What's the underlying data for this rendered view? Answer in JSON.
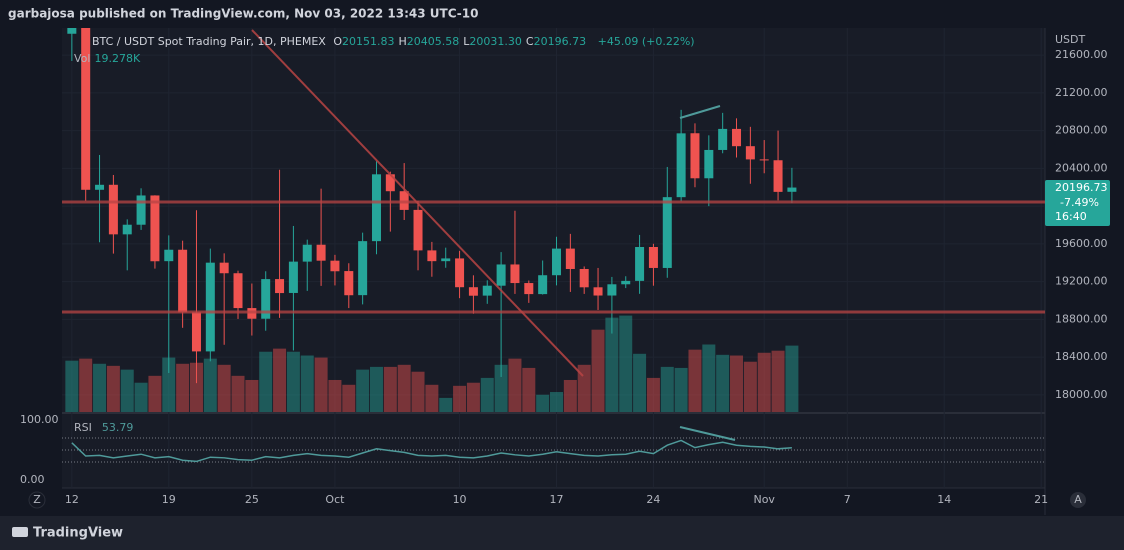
{
  "chart_data": {
    "type": "candlestick",
    "attribution": "garbajosa published on TradingView.com, Nov 03, 2022 13:43 UTC-10",
    "symbol": "BTC / USDT Spot Trading Pair, 1D, PHEMEX",
    "ohlc_legend": [
      {
        "key": "O",
        "value": "20151.83"
      },
      {
        "key": "H",
        "value": "20405.58"
      },
      {
        "key": "L",
        "value": "20031.30"
      },
      {
        "key": "C",
        "value": "20196.73"
      }
    ],
    "change": "+45.09 (+0.22%)",
    "volume_legend": {
      "name": "Vol",
      "value": "19.278K"
    },
    "price_unit": "USDT",
    "last_price_badge": [
      "20196.73",
      "-7.49%",
      "16:40"
    ],
    "up_color": "#26a69a",
    "down_color": "#ef5350",
    "x": [
      "2022-09-12",
      "2022-09-13",
      "2022-09-14",
      "2022-09-15",
      "2022-09-16",
      "2022-09-17",
      "2022-09-18",
      "2022-09-19",
      "2022-09-20",
      "2022-09-21",
      "2022-09-22",
      "2022-09-23",
      "2022-09-24",
      "2022-09-25",
      "2022-09-26",
      "2022-09-27",
      "2022-09-28",
      "2022-09-29",
      "2022-09-30",
      "2022-10-01",
      "2022-10-02",
      "2022-10-03",
      "2022-10-04",
      "2022-10-05",
      "2022-10-06",
      "2022-10-07",
      "2022-10-08",
      "2022-10-09",
      "2022-10-10",
      "2022-10-11",
      "2022-10-12",
      "2022-10-13",
      "2022-10-14",
      "2022-10-15",
      "2022-10-16",
      "2022-10-17",
      "2022-10-18",
      "2022-10-19",
      "2022-10-20",
      "2022-10-21",
      "2022-10-22",
      "2022-10-23",
      "2022-10-24",
      "2022-10-25",
      "2022-10-26",
      "2022-10-27",
      "2022-10-28",
      "2022-10-29",
      "2022-10-30",
      "2022-10-31",
      "2022-11-01",
      "2022-11-02",
      "2022-11-03"
    ],
    "open": [
      21826,
      22396,
      20173,
      20226,
      19701,
      19803,
      20113,
      19417,
      19538,
      18875,
      18461,
      19401,
      19289,
      18920,
      18807,
      19227,
      19080,
      19412,
      19591,
      19422,
      19312,
      19057,
      19629,
      20337,
      20158,
      19960,
      19531,
      19417,
      19446,
      19141,
      19052,
      19157,
      19382,
      19185,
      19068,
      19268,
      19550,
      19334,
      19140,
      19053,
      19172,
      19208,
      19567,
      19345,
      20095,
      20772,
      20295,
      20595,
      20818,
      20635,
      20495,
      20486,
      20151.83
    ],
    "high": [
      22488,
      22799,
      20542,
      20330,
      19860,
      20189,
      20115,
      19690,
      19634,
      19956,
      19550,
      19500,
      19316,
      19180,
      19310,
      20385,
      19790,
      19645,
      20185,
      19484,
      19395,
      19719,
      20475,
      20365,
      20456,
      20057,
      19621,
      19560,
      19526,
      19267,
      19214,
      19513,
      19951,
      19212,
      19424,
      19676,
      19706,
      19361,
      19345,
      19250,
      19257,
      19695,
      19601,
      20415,
      21020,
      20877,
      20750,
      20988,
      20930,
      20840,
      20700,
      20800,
      20405.58
    ],
    "low": [
      21538,
      20057,
      19617,
      19497,
      19320,
      19748,
      19338,
      18232,
      18711,
      18125,
      18356,
      18531,
      18805,
      18629,
      18680,
      18816,
      18471,
      19102,
      19155,
      19160,
      18920,
      18959,
      19490,
      19730,
      19853,
      19320,
      19252,
      19347,
      19025,
      18860,
      18965,
      18190,
      19070,
      18975,
      19063,
      19160,
      19091,
      19070,
      18900,
      18650,
      19132,
      19071,
      19157,
      19241,
      20050,
      20200,
      20000,
      20560,
      20515,
      20237,
      20348,
      20061,
      20031.3
    ],
    "close": [
      22395,
      20173,
      20226,
      19701,
      19803,
      20113,
      19416,
      19538,
      18876,
      18461,
      19401,
      19289,
      18920,
      18807,
      19227,
      19079,
      19412,
      19591,
      19422,
      19310,
      19056,
      19629,
      20337,
      20158,
      19960,
      19531,
      19417,
      19446,
      19141,
      19051,
      19157,
      19382,
      19185,
      19068,
      19268,
      19550,
      19334,
      19140,
      19053,
      19172,
      19208,
      19567,
      19345,
      20095,
      20771,
      20295,
      20595,
      20818,
      20635,
      20495,
      20486,
      20151,
      20196.73
    ],
    "volume": [
      14.9,
      15.5,
      14.0,
      13.4,
      12.3,
      8.5,
      10.5,
      15.8,
      14.0,
      14.3,
      15.5,
      13.7,
      10.5,
      9.3,
      17.5,
      18.4,
      17.5,
      16.4,
      15.8,
      9.3,
      7.9,
      12.3,
      13.1,
      13.1,
      13.7,
      11.7,
      7.9,
      4.1,
      7.6,
      8.5,
      9.9,
      13.7,
      15.5,
      12.8,
      5.0,
      5.8,
      9.3,
      13.7,
      23.9,
      27.4,
      28.0,
      16.9,
      9.9,
      13.1,
      12.8,
      18.1,
      19.6,
      16.6,
      16.4,
      14.6,
      17.2,
      17.8,
      19.278
    ],
    "volume_ylim": [
      0,
      111.5
    ],
    "ylim": [
      17819,
      21887
    ],
    "yticks": [
      {
        "value": 18000,
        "label": "18000.00"
      },
      {
        "value": 18400,
        "label": "18400.00"
      },
      {
        "value": 18800,
        "label": "18800.00"
      },
      {
        "value": 19200,
        "label": "19200.00"
      },
      {
        "value": 19600,
        "label": "19600.00"
      },
      {
        "value": 20000,
        "label": "20000.00"
      },
      {
        "value": 20400,
        "label": "20400.00"
      },
      {
        "value": 20800,
        "label": "20800.00"
      },
      {
        "value": 21200,
        "label": "21200.00"
      },
      {
        "value": 21600,
        "label": "21600.00"
      }
    ],
    "xlim": [
      "2022-09-11",
      "2022-11-22"
    ],
    "xticks": [
      {
        "value": "2022-09-12",
        "label": "12"
      },
      {
        "value": "2022-09-19",
        "label": "19"
      },
      {
        "value": "2022-09-25",
        "label": "25"
      },
      {
        "value": "2022-10-01",
        "label": "Oct"
      },
      {
        "value": "2022-10-10",
        "label": "10"
      },
      {
        "value": "2022-10-17",
        "label": "17"
      },
      {
        "value": "2022-10-24",
        "label": "24"
      },
      {
        "value": "2022-11-01",
        "label": "Nov"
      },
      {
        "value": "2022-11-07",
        "label": "7"
      },
      {
        "value": "2022-11-14",
        "label": "14"
      },
      {
        "value": "2022-11-21",
        "label": "21"
      }
    ],
    "grid": true,
    "rsi": {
      "name": "RSI",
      "color": "#4f9a9a",
      "values": [
        62,
        40,
        41,
        37,
        40,
        43,
        37,
        39,
        33,
        31,
        38,
        37,
        34,
        33,
        39,
        37,
        41,
        44,
        41,
        40,
        38,
        45,
        52,
        49,
        46,
        41,
        40,
        41,
        38,
        37,
        40,
        45,
        42,
        40,
        43,
        47,
        44,
        41,
        40,
        42,
        43,
        48,
        44,
        58,
        66,
        54,
        59,
        63,
        58,
        56,
        55,
        52,
        53.79
      ],
      "ylim": [
        -13.3,
        110
      ],
      "yticks": [
        {
          "value": 100,
          "label": "100.00"
        },
        {
          "value": 0,
          "label": "0.00"
        }
      ],
      "bands": [
        70,
        50,
        30
      ]
    },
    "scale_buttons": [
      "Z",
      "A"
    ],
    "brand": "TradingView"
  }
}
